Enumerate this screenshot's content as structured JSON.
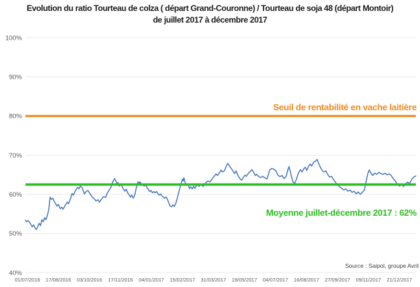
{
  "title": {
    "line1": "Evolution du ratio Tourteau de colza ( départ Grand-Couronne) / Tourteau de soja 48 (départ Montoir)",
    "line2": "de juillet 2017 à décembre 2017"
  },
  "source_note": "Source : Saipol, groupe Avril",
  "colors": {
    "series_blue": "#4878be",
    "threshold_orange": "#ef8c25",
    "average_green": "#2cbe23",
    "grid": "#e9e9e9",
    "axis_text": "#595959"
  },
  "chart_data": {
    "type": "line",
    "title": "Evolution du ratio Tourteau de colza ( départ Grand-Couronne) / Tourteau de soja 48 (départ Montoir) de juillet 2017 à décembre 2017",
    "grid": "horizontal",
    "legend": "none",
    "y_axis": {
      "min": 40,
      "max": 100,
      "step": 10,
      "unit": "%",
      "tick_labels": [
        "100%",
        "90%",
        "80%",
        "70%",
        "60%",
        "50%",
        "40%"
      ]
    },
    "x_axis": {
      "tick_labels": [
        "01/07/2016",
        "17/08/2016",
        "03/10/2016",
        "17/11/2016",
        "04/01/2017",
        "15/02/2017",
        "31/03/2017",
        "19/05/2017",
        "04/07/2017",
        "16/08/2017",
        "27/09/2017",
        "09/11/2017",
        "21/12/2017"
      ]
    },
    "ref_lines": [
      {
        "label": "Seuil de rentabilité en vache laitière",
        "value": 80,
        "color": "#ef8c25",
        "width": 3.2
      },
      {
        "label": "Moyenne juillet-décembre 2017 : 62%",
        "value": 62.5,
        "display_value": "62%",
        "color": "#2cbe23",
        "width": 3.6
      }
    ],
    "series": [
      {
        "name": "ratio colza / soja 48",
        "color": "#4878be",
        "points": [
          [
            0,
            53.4
          ],
          [
            0.0035,
            53
          ],
          [
            0.007,
            53.3
          ],
          [
            0.0105,
            52.9
          ],
          [
            0.0141,
            52.3
          ],
          [
            0.0176,
            51.7
          ],
          [
            0.0211,
            52.2
          ],
          [
            0.0246,
            51.4
          ],
          [
            0.0281,
            51
          ],
          [
            0.0316,
            51.7
          ],
          [
            0.0351,
            52.6
          ],
          [
            0.0387,
            52
          ],
          [
            0.0422,
            53.5
          ],
          [
            0.0457,
            53
          ],
          [
            0.0492,
            54
          ],
          [
            0.0527,
            53.5
          ],
          [
            0.0562,
            54.6
          ],
          [
            0.0598,
            56
          ],
          [
            0.0633,
            59.3
          ],
          [
            0.0668,
            58.7
          ],
          [
            0.0703,
            59
          ],
          [
            0.0738,
            58.2
          ],
          [
            0.0773,
            57.6
          ],
          [
            0.0808,
            57
          ],
          [
            0.0844,
            57.4
          ],
          [
            0.0896,
            56.3
          ],
          [
            0.0931,
            56.7
          ],
          [
            0.0967,
            56.2
          ],
          [
            0.1019,
            57.2
          ],
          [
            0.1072,
            58
          ],
          [
            0.1107,
            57.6
          ],
          [
            0.116,
            59
          ],
          [
            0.1195,
            60.2
          ],
          [
            0.123,
            59.8
          ],
          [
            0.1283,
            61
          ],
          [
            0.1336,
            61.8
          ],
          [
            0.1371,
            61.4
          ],
          [
            0.1406,
            62.1
          ],
          [
            0.1459,
            61.6
          ],
          [
            0.1511,
            60.1
          ],
          [
            0.1564,
            60.8
          ],
          [
            0.1599,
            61
          ],
          [
            0.1652,
            60.2
          ],
          [
            0.1705,
            59.4
          ],
          [
            0.1757,
            58.9
          ],
          [
            0.181,
            58.3
          ],
          [
            0.1863,
            58.6
          ],
          [
            0.1898,
            58
          ],
          [
            0.1951,
            58.8
          ],
          [
            0.2004,
            59.4
          ],
          [
            0.2056,
            59.2
          ],
          [
            0.2091,
            60.2
          ],
          [
            0.2127,
            60.8
          ],
          [
            0.2162,
            61.3
          ],
          [
            0.2197,
            61.9
          ],
          [
            0.2232,
            63.1
          ],
          [
            0.2285,
            64
          ],
          [
            0.232,
            63.3
          ],
          [
            0.2355,
            62.7
          ],
          [
            0.2373,
            63
          ],
          [
            0.2408,
            62.1
          ],
          [
            0.2443,
            62.7
          ],
          [
            0.2478,
            61.9
          ],
          [
            0.2513,
            61.3
          ],
          [
            0.2548,
            60.8
          ],
          [
            0.2584,
            61.3
          ],
          [
            0.2619,
            60.4
          ],
          [
            0.2654,
            59.9
          ],
          [
            0.2689,
            59.3
          ],
          [
            0.2724,
            59.8
          ],
          [
            0.2759,
            59
          ],
          [
            0.2794,
            59.6
          ],
          [
            0.283,
            61.2
          ],
          [
            0.2882,
            63.2
          ],
          [
            0.2917,
            62.8
          ],
          [
            0.2935,
            63.2
          ],
          [
            0.297,
            62.6
          ],
          [
            0.3005,
            62.4
          ],
          [
            0.304,
            62.1
          ],
          [
            0.3076,
            62.4
          ],
          [
            0.3111,
            61.8
          ],
          [
            0.3146,
            61.3
          ],
          [
            0.3181,
            60.7
          ],
          [
            0.3216,
            61
          ],
          [
            0.3251,
            60.4
          ],
          [
            0.3286,
            60.7
          ],
          [
            0.3322,
            60.4
          ],
          [
            0.3357,
            60.7
          ],
          [
            0.3392,
            60.2
          ],
          [
            0.3427,
            59.8
          ],
          [
            0.3462,
            60.1
          ],
          [
            0.3497,
            59.6
          ],
          [
            0.3532,
            59.3
          ],
          [
            0.3568,
            59
          ],
          [
            0.3603,
            59.3
          ],
          [
            0.3638,
            58.7
          ],
          [
            0.3673,
            57.8
          ],
          [
            0.3708,
            57
          ],
          [
            0.3743,
            56.8
          ],
          [
            0.3779,
            57.3
          ],
          [
            0.3814,
            56.9
          ],
          [
            0.3849,
            57.6
          ],
          [
            0.3884,
            58.8
          ],
          [
            0.3919,
            60.2
          ],
          [
            0.3954,
            61.5
          ],
          [
            0.3989,
            62.8
          ],
          [
            0.4025,
            63.9
          ],
          [
            0.4042,
            63.4
          ],
          [
            0.406,
            64.2
          ],
          [
            0.4095,
            62.9
          ],
          [
            0.413,
            62.3
          ],
          [
            0.4165,
            62.6
          ],
          [
            0.42,
            61.5
          ],
          [
            0.4235,
            61.9
          ],
          [
            0.4271,
            61.4
          ],
          [
            0.4306,
            62
          ],
          [
            0.4341,
            61.5
          ],
          [
            0.4376,
            62.2
          ],
          [
            0.4411,
            62.4
          ],
          [
            0.4446,
            62
          ],
          [
            0.4482,
            62.6
          ],
          [
            0.4517,
            62.3
          ],
          [
            0.4552,
            62
          ],
          [
            0.4587,
            62.5
          ],
          [
            0.4622,
            63
          ],
          [
            0.4675,
            63.4
          ],
          [
            0.4728,
            63.2
          ],
          [
            0.478,
            63.9
          ],
          [
            0.4833,
            64.6
          ],
          [
            0.4886,
            65.2
          ],
          [
            0.4921,
            64.8
          ],
          [
            0.4974,
            65.6
          ],
          [
            0.5009,
            66.2
          ],
          [
            0.5044,
            65.7
          ],
          [
            0.5097,
            66
          ],
          [
            0.5149,
            67.3
          ],
          [
            0.5185,
            67.9
          ],
          [
            0.522,
            67.3
          ],
          [
            0.5272,
            66.6
          ],
          [
            0.5325,
            65.8
          ],
          [
            0.536,
            65.3
          ],
          [
            0.5395,
            66
          ],
          [
            0.5448,
            64.7
          ],
          [
            0.5501,
            63.9
          ],
          [
            0.5536,
            63.6
          ],
          [
            0.5589,
            64.4
          ],
          [
            0.5624,
            64.9
          ],
          [
            0.5659,
            64.6
          ],
          [
            0.5712,
            65.4
          ],
          [
            0.5765,
            65.9
          ],
          [
            0.58,
            66.3
          ],
          [
            0.5852,
            65.5
          ],
          [
            0.5888,
            64.8
          ],
          [
            0.5923,
            65.1
          ],
          [
            0.5975,
            64.5
          ],
          [
            0.6028,
            64.3
          ],
          [
            0.6081,
            64.6
          ],
          [
            0.6134,
            64.2
          ],
          [
            0.6186,
            63.9
          ],
          [
            0.6222,
            65
          ],
          [
            0.6257,
            66.2
          ],
          [
            0.6309,
            66.6
          ],
          [
            0.6362,
            66.4
          ],
          [
            0.6415,
            66
          ],
          [
            0.6467,
            64.9
          ],
          [
            0.652,
            64.5
          ],
          [
            0.6573,
            64.8
          ],
          [
            0.6626,
            64
          ],
          [
            0.6678,
            64.6
          ],
          [
            0.6714,
            66
          ],
          [
            0.6749,
            67.1
          ],
          [
            0.6784,
            65.8
          ],
          [
            0.6819,
            64.3
          ],
          [
            0.6854,
            63.2
          ],
          [
            0.689,
            62.7
          ],
          [
            0.6925,
            63.4
          ],
          [
            0.6977,
            65
          ],
          [
            0.7013,
            65.8
          ],
          [
            0.7048,
            66.3
          ],
          [
            0.7083,
            65.7
          ],
          [
            0.7135,
            66.6
          ],
          [
            0.7171,
            66.9
          ],
          [
            0.7206,
            66.1
          ],
          [
            0.7258,
            67.3
          ],
          [
            0.7294,
            67.7
          ],
          [
            0.7329,
            67.2
          ],
          [
            0.7381,
            68.2
          ],
          [
            0.7434,
            68.5
          ],
          [
            0.7469,
            68.9
          ],
          [
            0.7504,
            68
          ],
          [
            0.754,
            67.2
          ],
          [
            0.7575,
            66.5
          ],
          [
            0.761,
            66
          ],
          [
            0.7645,
            65.7
          ],
          [
            0.7698,
            66
          ],
          [
            0.7733,
            65.2
          ],
          [
            0.7785,
            64.4
          ],
          [
            0.7838,
            64.6
          ],
          [
            0.7873,
            64
          ],
          [
            0.7926,
            63.3
          ],
          [
            0.7961,
            62.8
          ],
          [
            0.8014,
            62.2
          ],
          [
            0.8049,
            61.9
          ],
          [
            0.8102,
            61.5
          ],
          [
            0.8155,
            61.1
          ],
          [
            0.8207,
            61.4
          ],
          [
            0.826,
            60.8
          ],
          [
            0.8313,
            61.1
          ],
          [
            0.8366,
            60.5
          ],
          [
            0.8418,
            60.8
          ],
          [
            0.8471,
            60.1
          ],
          [
            0.8524,
            60.6
          ],
          [
            0.8576,
            60
          ],
          [
            0.8629,
            60.5
          ],
          [
            0.8682,
            61.1
          ],
          [
            0.8717,
            62.9
          ],
          [
            0.877,
            65.3
          ],
          [
            0.8805,
            66.2
          ],
          [
            0.884,
            65.6
          ],
          [
            0.8893,
            64.8
          ],
          [
            0.8946,
            65.4
          ],
          [
            0.8998,
            65.1
          ],
          [
            0.9051,
            65.6
          ],
          [
            0.9104,
            65.3
          ],
          [
            0.9156,
            65.1
          ],
          [
            0.9209,
            65.4
          ],
          [
            0.9262,
            65
          ],
          [
            0.9315,
            65.2
          ],
          [
            0.9367,
            64.8
          ],
          [
            0.942,
            64
          ],
          [
            0.9473,
            63.4
          ],
          [
            0.9525,
            62.6
          ],
          [
            0.9578,
            62.1
          ],
          [
            0.9631,
            62.5
          ],
          [
            0.9684,
            62
          ],
          [
            0.9736,
            62.7
          ],
          [
            0.9789,
            63.1
          ],
          [
            0.9842,
            62.8
          ],
          [
            0.9895,
            63.8
          ],
          [
            0.9947,
            64.4
          ],
          [
            1,
            64.7
          ]
        ]
      }
    ]
  }
}
